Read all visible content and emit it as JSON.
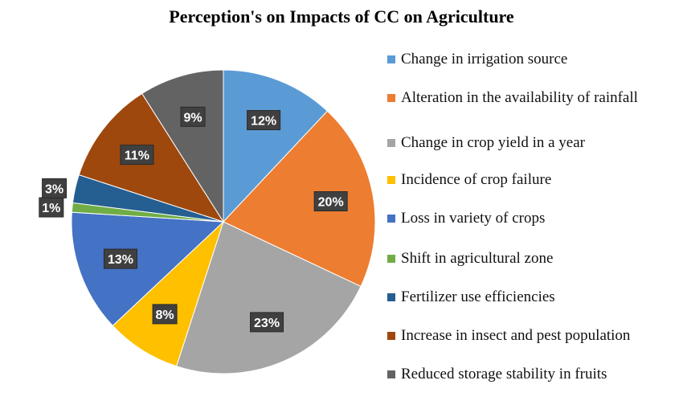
{
  "chart_data": {
    "type": "pie",
    "title": "Perception's on Impacts of CC on Agriculture",
    "categories": [
      "Change in irrigation source",
      "Alteration in the availability of rainfall",
      "Change in crop yield in a year",
      "Incidence of crop failure",
      "Loss in variety of crops",
      "Shift in agricultural zone",
      "Fertilizer use efficiencies",
      "Increase in insect and pest population",
      "Reduced storage stability in fruits"
    ],
    "values": [
      12,
      20,
      23,
      8,
      13,
      1,
      3,
      11,
      9
    ],
    "data_labels": [
      "12%",
      "20%",
      "23%",
      "8%",
      "13%",
      "1%",
      "3%",
      "11%",
      "9%"
    ],
    "colors": [
      "#5b9bd5",
      "#ed7d31",
      "#a5a5a5",
      "#ffc000",
      "#4472c4",
      "#70ad47",
      "#255e91",
      "#9e480e",
      "#636363"
    ],
    "legend_position": "right"
  }
}
